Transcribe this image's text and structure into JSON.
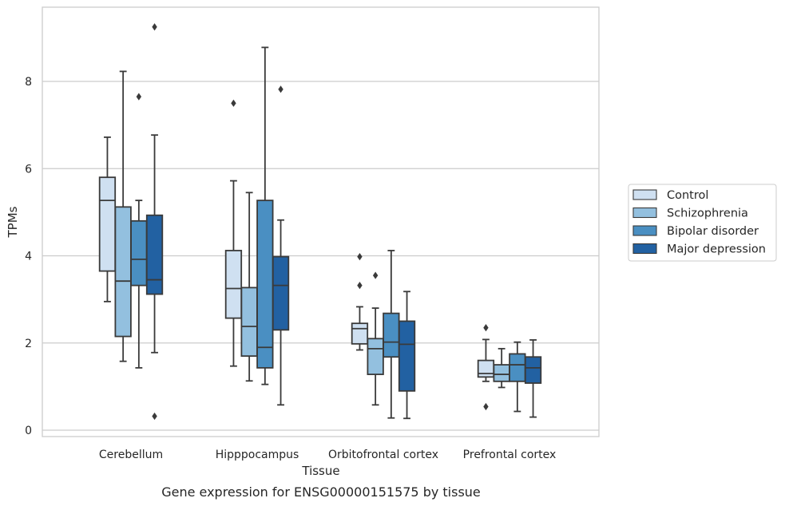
{
  "chart_data": {
    "type": "box",
    "title": "",
    "caption": "Gene expression for ENSG00000151575 by tissue",
    "xlabel": "Tissue",
    "ylabel": "TPMs",
    "ylim": [
      -0.15,
      9.7
    ],
    "yticks": [
      "0",
      "2",
      "4",
      "6",
      "8"
    ],
    "grid": true,
    "legend_position": "right",
    "categories": [
      "Cerebellum",
      "Hipppocampus",
      "Orbitofrontal cortex",
      "Prefrontal cortex"
    ],
    "series": [
      {
        "name": "Control",
        "color": "#cfe0f1",
        "boxes": [
          {
            "min": 2.95,
            "q1": 3.65,
            "median": 5.27,
            "q3": 5.8,
            "max": 6.72,
            "outliers": []
          },
          {
            "min": 1.47,
            "q1": 2.57,
            "median": 3.25,
            "q3": 4.12,
            "max": 5.72,
            "outliers": [
              7.5
            ]
          },
          {
            "min": 1.84,
            "q1": 1.98,
            "median": 2.33,
            "q3": 2.45,
            "max": 2.83,
            "outliers": [
              3.32,
              3.98
            ]
          },
          {
            "min": 1.12,
            "q1": 1.22,
            "median": 1.3,
            "q3": 1.6,
            "max": 2.08,
            "outliers": [
              0.54,
              2.35
            ]
          }
        ]
      },
      {
        "name": "Schizophrenia",
        "color": "#93c0df",
        "boxes": [
          {
            "min": 1.58,
            "q1": 2.15,
            "median": 3.42,
            "q3": 5.12,
            "max": 8.23,
            "outliers": []
          },
          {
            "min": 1.13,
            "q1": 1.7,
            "median": 2.38,
            "q3": 3.27,
            "max": 5.45,
            "outliers": []
          },
          {
            "min": 0.58,
            "q1": 1.28,
            "median": 1.87,
            "q3": 2.1,
            "max": 2.8,
            "outliers": [
              3.55
            ]
          },
          {
            "min": 0.98,
            "q1": 1.12,
            "median": 1.28,
            "q3": 1.5,
            "max": 1.87,
            "outliers": []
          }
        ]
      },
      {
        "name": "Bipolar disorder",
        "color": "#4a8fc2",
        "boxes": [
          {
            "min": 1.43,
            "q1": 3.32,
            "median": 3.92,
            "q3": 4.8,
            "max": 5.27,
            "outliers": [
              7.65
            ]
          },
          {
            "min": 1.05,
            "q1": 1.43,
            "median": 1.9,
            "q3": 5.27,
            "max": 8.78,
            "outliers": []
          },
          {
            "min": 0.28,
            "q1": 1.68,
            "median": 2.02,
            "q3": 2.68,
            "max": 4.12,
            "outliers": []
          },
          {
            "min": 0.43,
            "q1": 1.12,
            "median": 1.5,
            "q3": 1.75,
            "max": 2.02,
            "outliers": []
          }
        ]
      },
      {
        "name": "Major depression",
        "color": "#2261a2",
        "boxes": [
          {
            "min": 1.78,
            "q1": 3.12,
            "median": 3.45,
            "q3": 4.93,
            "max": 6.77,
            "outliers": [
              0.32,
              9.25
            ]
          },
          {
            "min": 0.58,
            "q1": 2.3,
            "median": 3.32,
            "q3": 3.98,
            "max": 4.82,
            "outliers": [
              7.82
            ]
          },
          {
            "min": 0.27,
            "q1": 0.9,
            "median": 1.97,
            "q3": 2.5,
            "max": 3.18,
            "outliers": []
          },
          {
            "min": 0.3,
            "q1": 1.08,
            "median": 1.43,
            "q3": 1.68,
            "max": 2.07,
            "outliers": []
          }
        ]
      }
    ]
  }
}
